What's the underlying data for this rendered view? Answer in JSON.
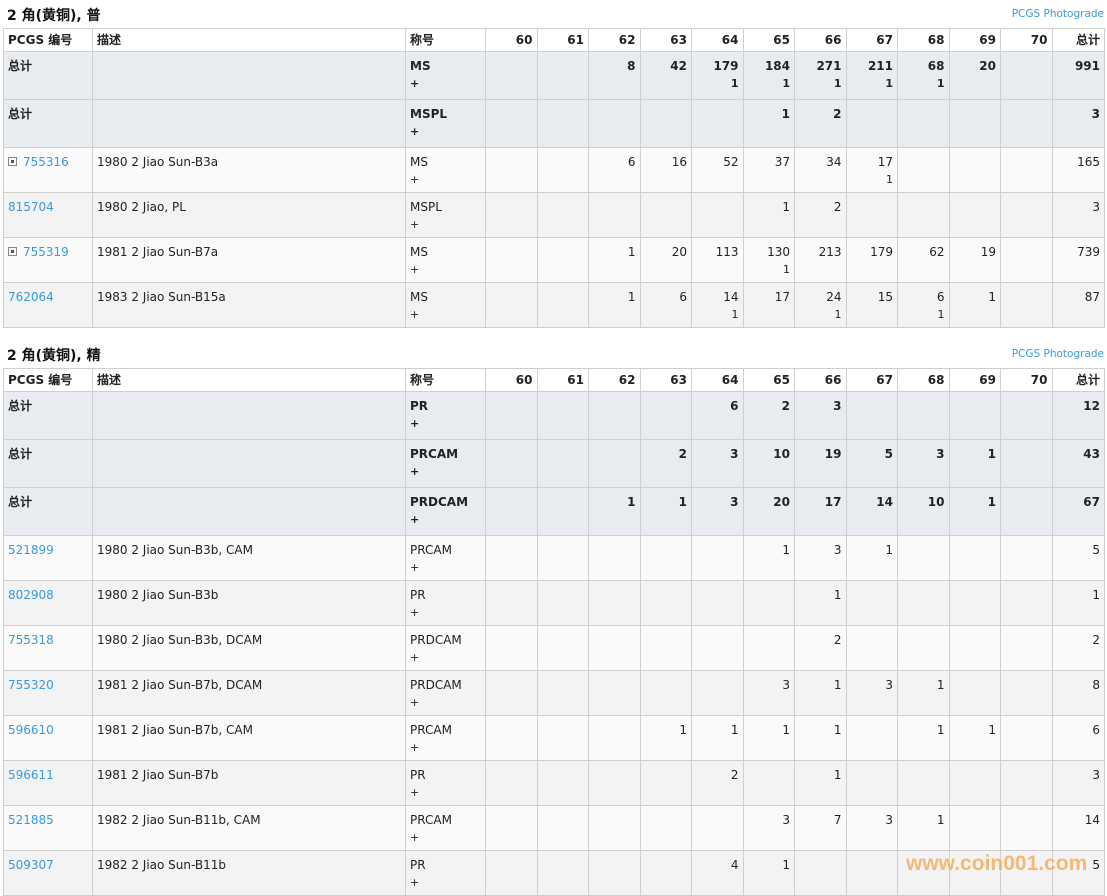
{
  "columns": {
    "pcgs": "PCGS 编号",
    "desc": "描述",
    "desig": "称号",
    "grades": [
      "60",
      "61",
      "62",
      "63",
      "64",
      "65",
      "66",
      "67",
      "68",
      "69",
      "70"
    ],
    "total": "总计"
  },
  "sections": [
    {
      "title": "2 角(黄铜), 普",
      "photograde": "PCGS Photograde",
      "rows": [
        {
          "type": "sum",
          "pcgs": "总计",
          "desc": "",
          "desig": "MS",
          "plus_mark": "+",
          "counts": [
            "",
            "",
            "8",
            "42",
            "179",
            "184",
            "271",
            "211",
            "68",
            "20",
            ""
          ],
          "plus": [
            "",
            "",
            "",
            "",
            "1",
            "1",
            "1",
            "1",
            "1",
            "",
            ""
          ],
          "total": "991"
        },
        {
          "type": "sum",
          "pcgs": "总计",
          "desc": "",
          "desig": "MSPL",
          "plus_mark": "+",
          "counts": [
            "",
            "",
            "",
            "",
            "",
            "1",
            "2",
            "",
            "",
            "",
            ""
          ],
          "plus": [
            "",
            "",
            "",
            "",
            "",
            "",
            "",
            "",
            "",
            "",
            ""
          ],
          "total": "3"
        },
        {
          "type": "item",
          "expand": true,
          "pcgs": "755316",
          "desc": "1980 2 Jiao Sun-B3a",
          "desig": "MS",
          "plus_mark": "+",
          "counts": [
            "",
            "",
            "6",
            "16",
            "52",
            "37",
            "34",
            "17",
            "",
            "",
            ""
          ],
          "plus": [
            "",
            "",
            "",
            "",
            "",
            "",
            "",
            "1",
            "",
            "",
            ""
          ],
          "total": "165"
        },
        {
          "type": "item",
          "expand": false,
          "pcgs": "815704",
          "desc": "1980 2 Jiao, PL",
          "desig": "MSPL",
          "plus_mark": "+",
          "counts": [
            "",
            "",
            "",
            "",
            "",
            "1",
            "2",
            "",
            "",
            "",
            ""
          ],
          "plus": [
            "",
            "",
            "",
            "",
            "",
            "",
            "",
            "",
            "",
            "",
            ""
          ],
          "total": "3"
        },
        {
          "type": "item",
          "expand": true,
          "pcgs": "755319",
          "desc": "1981 2 Jiao Sun-B7a",
          "desig": "MS",
          "plus_mark": "+",
          "counts": [
            "",
            "",
            "1",
            "20",
            "113",
            "130",
            "213",
            "179",
            "62",
            "19",
            ""
          ],
          "plus": [
            "",
            "",
            "",
            "",
            "",
            "1",
            "",
            "",
            "",
            "",
            ""
          ],
          "total": "739"
        },
        {
          "type": "item",
          "expand": false,
          "pcgs": "762064",
          "desc": "1983 2 Jiao Sun-B15a",
          "desig": "MS",
          "plus_mark": "+",
          "counts": [
            "",
            "",
            "1",
            "6",
            "14",
            "17",
            "24",
            "15",
            "6",
            "1",
            ""
          ],
          "plus": [
            "",
            "",
            "",
            "",
            "1",
            "",
            "1",
            "",
            "1",
            "",
            ""
          ],
          "total": "87"
        }
      ]
    },
    {
      "title": "2 角(黄铜), 精",
      "photograde": "PCGS Photograde",
      "rows": [
        {
          "type": "sum",
          "pcgs": "总计",
          "desc": "",
          "desig": "PR",
          "plus_mark": "+",
          "counts": [
            "",
            "",
            "",
            "",
            "6",
            "2",
            "3",
            "",
            "",
            "",
            ""
          ],
          "plus": [
            "",
            "",
            "",
            "",
            "",
            "",
            "",
            "",
            "",
            "",
            ""
          ],
          "total": "12"
        },
        {
          "type": "sum",
          "pcgs": "总计",
          "desc": "",
          "desig": "PRCAM",
          "plus_mark": "+",
          "counts": [
            "",
            "",
            "",
            "2",
            "3",
            "10",
            "19",
            "5",
            "3",
            "1",
            ""
          ],
          "plus": [
            "",
            "",
            "",
            "",
            "",
            "",
            "",
            "",
            "",
            "",
            ""
          ],
          "total": "43"
        },
        {
          "type": "sum",
          "pcgs": "总计",
          "desc": "",
          "desig": "PRDCAM",
          "plus_mark": "+",
          "counts": [
            "",
            "",
            "1",
            "1",
            "3",
            "20",
            "17",
            "14",
            "10",
            "1",
            ""
          ],
          "plus": [
            "",
            "",
            "",
            "",
            "",
            "",
            "",
            "",
            "",
            "",
            ""
          ],
          "total": "67"
        },
        {
          "type": "item",
          "expand": false,
          "pcgs": "521899",
          "desc": "1980 2 Jiao Sun-B3b, CAM",
          "desig": "PRCAM",
          "plus_mark": "+",
          "counts": [
            "",
            "",
            "",
            "",
            "",
            "1",
            "3",
            "1",
            "",
            "",
            ""
          ],
          "plus": [
            "",
            "",
            "",
            "",
            "",
            "",
            "",
            "",
            "",
            "",
            ""
          ],
          "total": "5"
        },
        {
          "type": "item",
          "expand": false,
          "pcgs": "802908",
          "desc": "1980 2 Jiao Sun-B3b",
          "desig": "PR",
          "plus_mark": "+",
          "counts": [
            "",
            "",
            "",
            "",
            "",
            "",
            "1",
            "",
            "",
            "",
            ""
          ],
          "plus": [
            "",
            "",
            "",
            "",
            "",
            "",
            "",
            "",
            "",
            "",
            ""
          ],
          "total": "1"
        },
        {
          "type": "item",
          "expand": false,
          "pcgs": "755318",
          "desc": "1980 2 Jiao Sun-B3b, DCAM",
          "desig": "PRDCAM",
          "plus_mark": "+",
          "counts": [
            "",
            "",
            "",
            "",
            "",
            "",
            "2",
            "",
            "",
            "",
            ""
          ],
          "plus": [
            "",
            "",
            "",
            "",
            "",
            "",
            "",
            "",
            "",
            "",
            ""
          ],
          "total": "2"
        },
        {
          "type": "item",
          "expand": false,
          "pcgs": "755320",
          "desc": "1981 2 Jiao Sun-B7b, DCAM",
          "desig": "PRDCAM",
          "plus_mark": "+",
          "counts": [
            "",
            "",
            "",
            "",
            "",
            "3",
            "1",
            "3",
            "1",
            "",
            ""
          ],
          "plus": [
            "",
            "",
            "",
            "",
            "",
            "",
            "",
            "",
            "",
            "",
            ""
          ],
          "total": "8"
        },
        {
          "type": "item",
          "expand": false,
          "pcgs": "596610",
          "desc": "1981 2 Jiao Sun-B7b, CAM",
          "desig": "PRCAM",
          "plus_mark": "+",
          "counts": [
            "",
            "",
            "",
            "1",
            "1",
            "1",
            "1",
            "",
            "1",
            "1",
            ""
          ],
          "plus": [
            "",
            "",
            "",
            "",
            "",
            "",
            "",
            "",
            "",
            "",
            ""
          ],
          "total": "6"
        },
        {
          "type": "item",
          "expand": false,
          "pcgs": "596611",
          "desc": "1981 2 Jiao Sun-B7b",
          "desig": "PR",
          "plus_mark": "+",
          "counts": [
            "",
            "",
            "",
            "",
            "2",
            "",
            "1",
            "",
            "",
            "",
            ""
          ],
          "plus": [
            "",
            "",
            "",
            "",
            "",
            "",
            "",
            "",
            "",
            "",
            ""
          ],
          "total": "3"
        },
        {
          "type": "item",
          "expand": false,
          "pcgs": "521885",
          "desc": "1982 2 Jiao Sun-B11b, CAM",
          "desig": "PRCAM",
          "plus_mark": "+",
          "counts": [
            "",
            "",
            "",
            "",
            "",
            "3",
            "7",
            "3",
            "1",
            "",
            ""
          ],
          "plus": [
            "",
            "",
            "",
            "",
            "",
            "",
            "",
            "",
            "",
            "",
            ""
          ],
          "total": "14"
        },
        {
          "type": "item",
          "expand": false,
          "pcgs": "509307",
          "desc": "1982 2 Jiao Sun-B11b",
          "desig": "PR",
          "plus_mark": "+",
          "counts": [
            "",
            "",
            "",
            "",
            "4",
            "1",
            "",
            "",
            "",
            "",
            ""
          ],
          "plus": [
            "",
            "",
            "",
            "",
            "",
            "",
            "",
            "",
            "",
            "",
            ""
          ],
          "total": "5"
        }
      ]
    }
  ],
  "watermark": "www.coin001.com",
  "colors": {
    "link": "#3a9ad9",
    "summary_bg": "#e8ecf0",
    "watermark": "#f5b36a"
  }
}
